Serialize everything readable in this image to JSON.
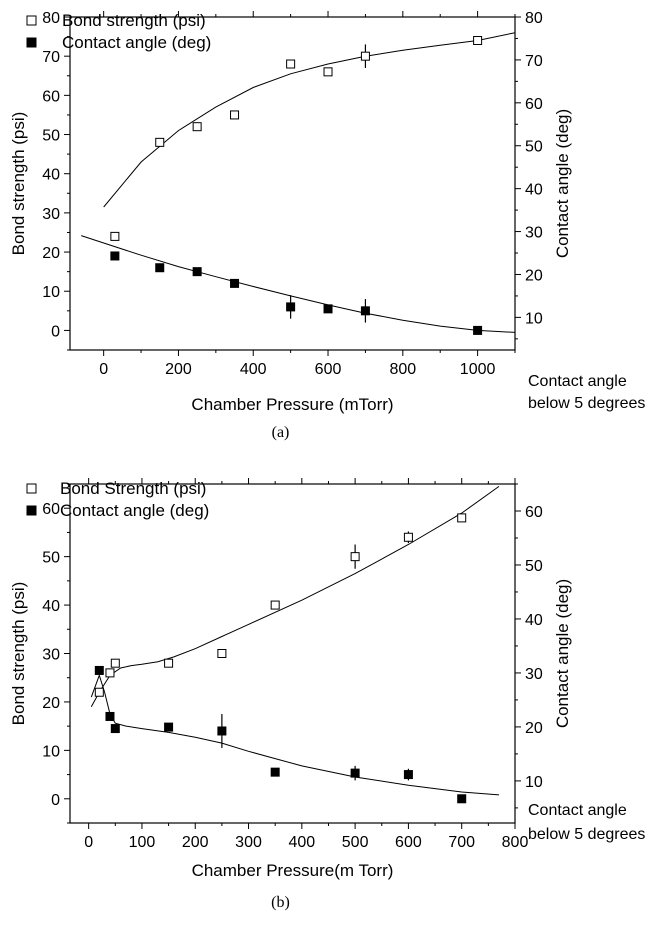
{
  "chart_data": [
    {
      "type": "scatter",
      "panel_caption": "(a)",
      "xlabel": "Chamber Pressure (mTorr)",
      "ylabel": "Bond strength (psi)",
      "y2label": "Contact angle (deg)",
      "xlim": [
        -90,
        1100
      ],
      "ylim": [
        -5,
        80
      ],
      "y2lim": [
        2.4,
        80
      ],
      "xticks": [
        0,
        200,
        400,
        600,
        800,
        1000
      ],
      "yticks": [
        0,
        10,
        20,
        30,
        40,
        50,
        60,
        70,
        80
      ],
      "y2ticks": [
        10,
        20,
        30,
        40,
        50,
        60,
        70,
        80
      ],
      "legend_position": "top-left",
      "note": [
        "Contact angle",
        "below 5 degrees"
      ],
      "series": [
        {
          "name": "Bond strength (psi)",
          "marker": "open-square",
          "axis": "left",
          "x": [
            30,
            150,
            250,
            350,
            500,
            600,
            700,
            1000
          ],
          "y": [
            24,
            48,
            52,
            55,
            68,
            66,
            70,
            74
          ],
          "error": [
            0,
            0,
            0,
            0,
            0,
            0,
            3,
            0
          ]
        },
        {
          "name": "Contact angle (deg)",
          "marker": "filled-square",
          "axis": "left",
          "x": [
            30,
            150,
            250,
            350,
            500,
            600,
            700,
            1000
          ],
          "y": [
            19,
            16,
            15,
            12,
            6,
            5.5,
            5,
            0
          ],
          "error": [
            0,
            0,
            0,
            0,
            3,
            0,
            3,
            0
          ]
        }
      ],
      "fits": [
        {
          "x": [
            0,
            100,
            200,
            300,
            400,
            500,
            600,
            700,
            800,
            900,
            1000,
            1100
          ],
          "y": [
            31.5,
            43,
            51,
            57,
            62,
            65.5,
            68,
            70,
            71.5,
            72.8,
            74,
            76
          ]
        },
        {
          "x": [
            -60,
            0,
            100,
            200,
            300,
            400,
            500,
            600,
            700,
            800,
            900,
            1000,
            1100
          ],
          "y": [
            24.2,
            22.3,
            19.2,
            16.3,
            13.7,
            11.2,
            8.8,
            6.5,
            4.4,
            2.6,
            1.1,
            0,
            -0.5
          ]
        }
      ]
    },
    {
      "type": "scatter",
      "panel_caption": "(b)",
      "xlabel": "Chamber Pressure(m Torr)",
      "ylabel": "Bond strength (psi)",
      "y2label": "Contact angle (deg)",
      "xlim": [
        -35,
        800
      ],
      "ylim": [
        -5,
        65
      ],
      "y2lim": [
        2.2,
        65
      ],
      "xticks": [
        0,
        100,
        200,
        300,
        400,
        500,
        600,
        700,
        800
      ],
      "yticks": [
        0,
        10,
        20,
        30,
        40,
        50,
        60
      ],
      "y2ticks": [
        10,
        20,
        30,
        40,
        50,
        60
      ],
      "legend_position": "top-left",
      "note": [
        "Contact angle",
        "below 5 degrees"
      ],
      "series": [
        {
          "name": "Bond Strength (psi)",
          "marker": "open-square",
          "axis": "left",
          "x": [
            20,
            40,
            50,
            150,
            250,
            350,
            500,
            600,
            700
          ],
          "y": [
            22,
            26,
            28,
            28,
            30,
            40,
            50,
            54,
            58
          ],
          "error": [
            0,
            0,
            0,
            0,
            0,
            0,
            2.5,
            1.2,
            0
          ]
        },
        {
          "name": "Contact angle (deg)",
          "marker": "filled-square",
          "axis": "left",
          "x": [
            20,
            40,
            50,
            150,
            250,
            350,
            500,
            600,
            700
          ],
          "y": [
            26.5,
            17,
            14.5,
            14.8,
            14,
            5.5,
            5.3,
            5,
            0
          ],
          "error": [
            0,
            0,
            0,
            0,
            3.5,
            0,
            1.5,
            1.2,
            0
          ]
        }
      ],
      "fits": [
        {
          "x": [
            5,
            20,
            40,
            60,
            80,
            100,
            130,
            160,
            200,
            250,
            300,
            400,
            500,
            600,
            700,
            770
          ],
          "y": [
            19,
            22,
            25.5,
            27,
            27.5,
            27.8,
            28.3,
            29.3,
            31,
            33.5,
            36,
            41,
            46.5,
            52.5,
            59,
            64.5
          ]
        },
        {
          "x": [
            5,
            20,
            30,
            40,
            50,
            70,
            100,
            150,
            200,
            250,
            300,
            350,
            400,
            500,
            600,
            700,
            770
          ],
          "y": [
            21,
            25.5,
            22,
            17.5,
            15.6,
            15,
            14.5,
            13.7,
            12.7,
            11.5,
            9.8,
            8.3,
            6.8,
            4.5,
            2.8,
            1.4,
            0.8
          ]
        }
      ]
    }
  ]
}
